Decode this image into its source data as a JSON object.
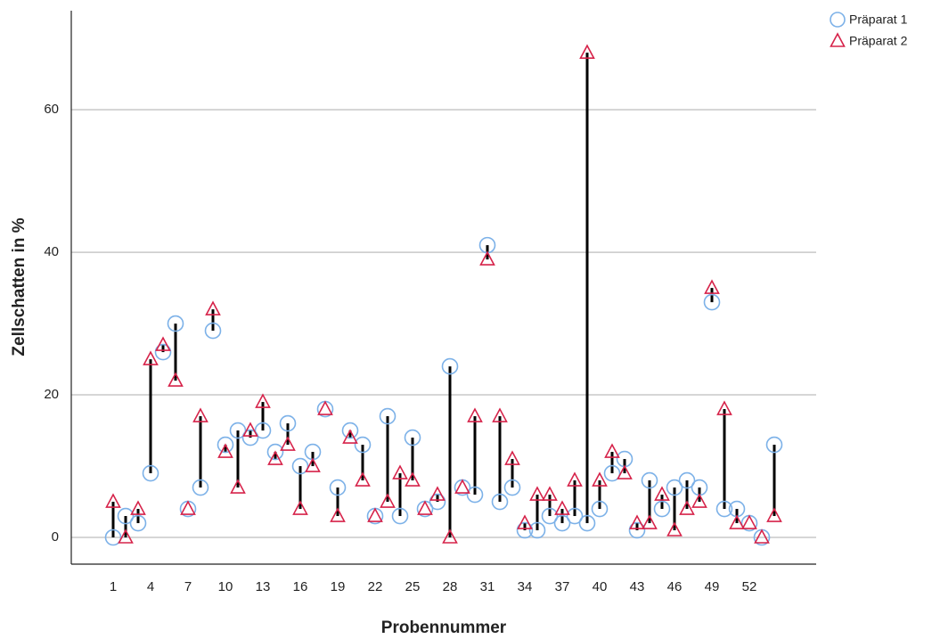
{
  "chart_data": {
    "type": "dot",
    "x_label": "Probennummer",
    "y_label": "Zellschatten in %",
    "categories": [
      "1",
      null,
      null,
      "4",
      null,
      null,
      "7",
      null,
      null,
      "10",
      null,
      null,
      "13",
      null,
      null,
      "16",
      null,
      null,
      "19",
      null,
      null,
      "22",
      null,
      null,
      "25",
      null,
      null,
      "28",
      null,
      null,
      "31",
      null,
      null,
      "34",
      null,
      null,
      "37",
      null,
      null,
      "40",
      null,
      null,
      "43",
      null,
      null,
      "46",
      null,
      null,
      "49",
      null,
      null,
      "52",
      null,
      null
    ],
    "series": [
      {
        "name": "Präparat 1",
        "color": "#7cb1e8",
        "marker": "circle",
        "values": [
          0,
          3,
          2,
          9,
          26,
          30,
          4,
          7,
          29,
          13,
          15,
          14,
          15,
          12,
          16,
          10,
          12,
          18,
          7,
          15,
          13,
          3,
          17,
          3,
          14,
          4,
          5,
          24,
          7,
          6,
          41,
          5,
          7,
          1,
          1,
          3,
          2,
          3,
          2,
          4,
          9,
          11,
          1,
          8,
          4,
          7,
          8,
          7,
          33,
          4,
          4,
          2,
          0,
          13
        ]
      },
      {
        "name": "Präparat 2",
        "color": "#d6234a",
        "marker": "triangle",
        "values": [
          5,
          0,
          4,
          25,
          27,
          22,
          4,
          17,
          32,
          12,
          7,
          15,
          19,
          11,
          13,
          4,
          10,
          18,
          3,
          14,
          8,
          3,
          5,
          9,
          8,
          4,
          6,
          0,
          7,
          17,
          39,
          17,
          11,
          2,
          6,
          6,
          4,
          8,
          68,
          8,
          12,
          9,
          2,
          2,
          6,
          1,
          4,
          5,
          35,
          18,
          2,
          2,
          0,
          3
        ]
      }
    ],
    "ylim": [
      -3.75,
      73.9
    ],
    "yticks": [
      0,
      20,
      40,
      60
    ],
    "grid": true,
    "legend": "top-right"
  }
}
